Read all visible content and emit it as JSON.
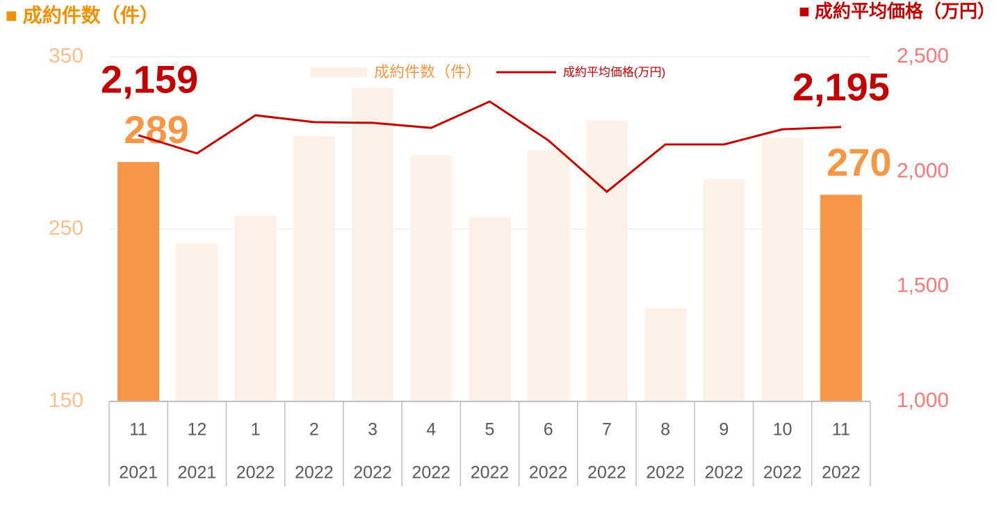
{
  "chart_data": {
    "type": "bar_line",
    "header_left": "■ 成約件数（件）",
    "header_right": "■ 成約平均価格（万円）",
    "categories": [
      "11",
      "12",
      "1",
      "2",
      "3",
      "4",
      "5",
      "6",
      "7",
      "8",
      "9",
      "10",
      "11"
    ],
    "category_years": [
      "2021",
      "2021",
      "2022",
      "2022",
      "2022",
      "2022",
      "2022",
      "2022",
      "2022",
      "2022",
      "2022",
      "2022",
      "2022"
    ],
    "series": [
      {
        "name": "成約件数（件）",
        "type": "bar",
        "color": "#FDF0E6",
        "highlight_color": "#F79646",
        "highlight": [
          true,
          false,
          false,
          false,
          false,
          false,
          false,
          false,
          false,
          false,
          false,
          false,
          true
        ],
        "values": [
          289,
          242,
          258,
          304,
          332,
          293,
          257,
          296,
          313,
          204,
          279,
          303,
          270
        ],
        "value_labels": [
          "289",
          null,
          null,
          null,
          null,
          null,
          null,
          null,
          null,
          null,
          null,
          null,
          "270"
        ]
      },
      {
        "name": "成約平均価格(万円)",
        "type": "line",
        "axis": "y2",
        "color": "#C00000",
        "values": [
          2159,
          2080,
          2246,
          2216,
          2213,
          2191,
          2306,
          2137,
          1913,
          2119,
          2119,
          2185,
          2195
        ],
        "value_labels": [
          "2,159",
          null,
          null,
          null,
          null,
          null,
          null,
          null,
          null,
          null,
          null,
          null,
          "2,195"
        ]
      }
    ],
    "ylim": [
      150,
      350
    ],
    "yticks": [
      150,
      250,
      350
    ],
    "y2lim": [
      1000,
      2500
    ],
    "y2ticks": [
      {
        "value": 1000,
        "label": "1,000"
      },
      {
        "value": 1500,
        "label": "1,500"
      },
      {
        "value": 2000,
        "label": "2,000"
      },
      {
        "value": 2500,
        "label": "2,500"
      }
    ],
    "grid": true
  }
}
